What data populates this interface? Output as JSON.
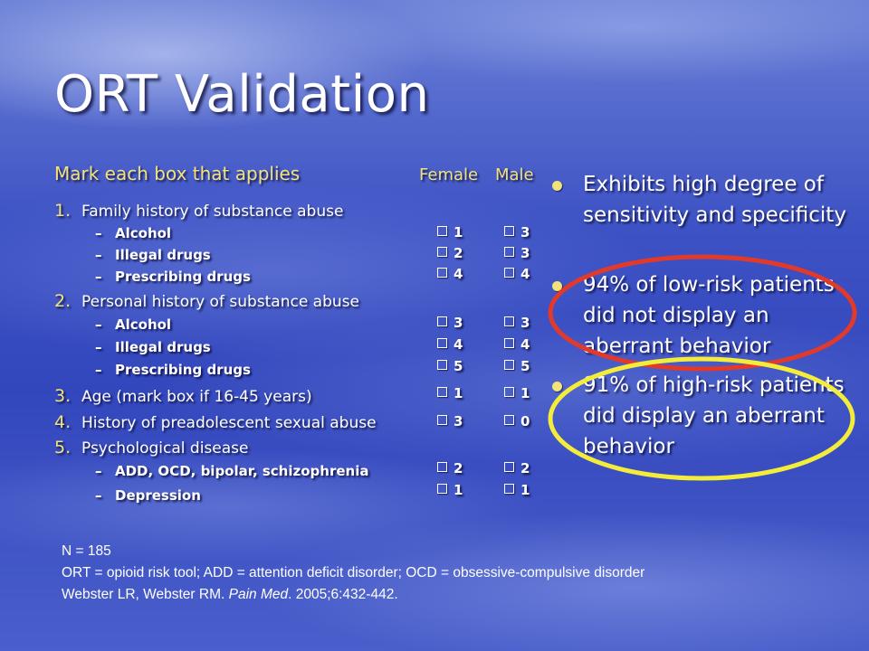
{
  "title": "ORT Validation",
  "instruction": "Mark each box that applies",
  "columns": {
    "female": "Female",
    "male": "Male"
  },
  "items": [
    {
      "num": "1.",
      "label": "Family history of substance abuse"
    },
    {
      "num": "2.",
      "label": "Personal history of substance abuse"
    },
    {
      "num": "3.",
      "label": "Age (mark box if 16-45 years)"
    },
    {
      "num": "4.",
      "label": "History of preadolescent sexual abuse"
    },
    {
      "num": "5.",
      "label": "Psychological disease"
    }
  ],
  "subitems": [
    {
      "label": "Alcohol",
      "female": "1",
      "male": "3"
    },
    {
      "label": "Illegal drugs",
      "female": "2",
      "male": "3"
    },
    {
      "label": "Prescribing drugs",
      "female": "4",
      "male": "4"
    },
    {
      "label": "Alcohol",
      "female": "3",
      "male": "3"
    },
    {
      "label": "Illegal drugs",
      "female": "4",
      "male": "4"
    },
    {
      "label": "Prescribing drugs",
      "female": "5",
      "male": "5"
    },
    {
      "label": "ADD, OCD, bipolar, schizophrenia",
      "female": "2",
      "male": "2"
    },
    {
      "label": "Depression",
      "female": "1",
      "male": "1"
    }
  ],
  "item_scores": [
    {
      "female": "1",
      "male": "1"
    },
    {
      "female": "3",
      "male": "0"
    }
  ],
  "dash": "–",
  "bullets": [
    "Exhibits high degree of sensitivity and specificity",
    "94% of low-risk patients did not display an aberrant behavior",
    "91% of high-risk patients did display an aberrant behavior"
  ],
  "footer": {
    "n": "N = 185",
    "abbrev": "ORT = opioid risk tool; ADD = attention deficit disorder; OCD = obsessive-compulsive disorder",
    "citation_pre": "Webster LR, Webster RM. ",
    "citation_journal": "Pain Med",
    "citation_post": ". 2005;6:432-442."
  },
  "colors": {
    "accent_yellow": "#f2e27a",
    "circle_red": "#e23a2a",
    "circle_yellow": "#f4ec3a"
  }
}
